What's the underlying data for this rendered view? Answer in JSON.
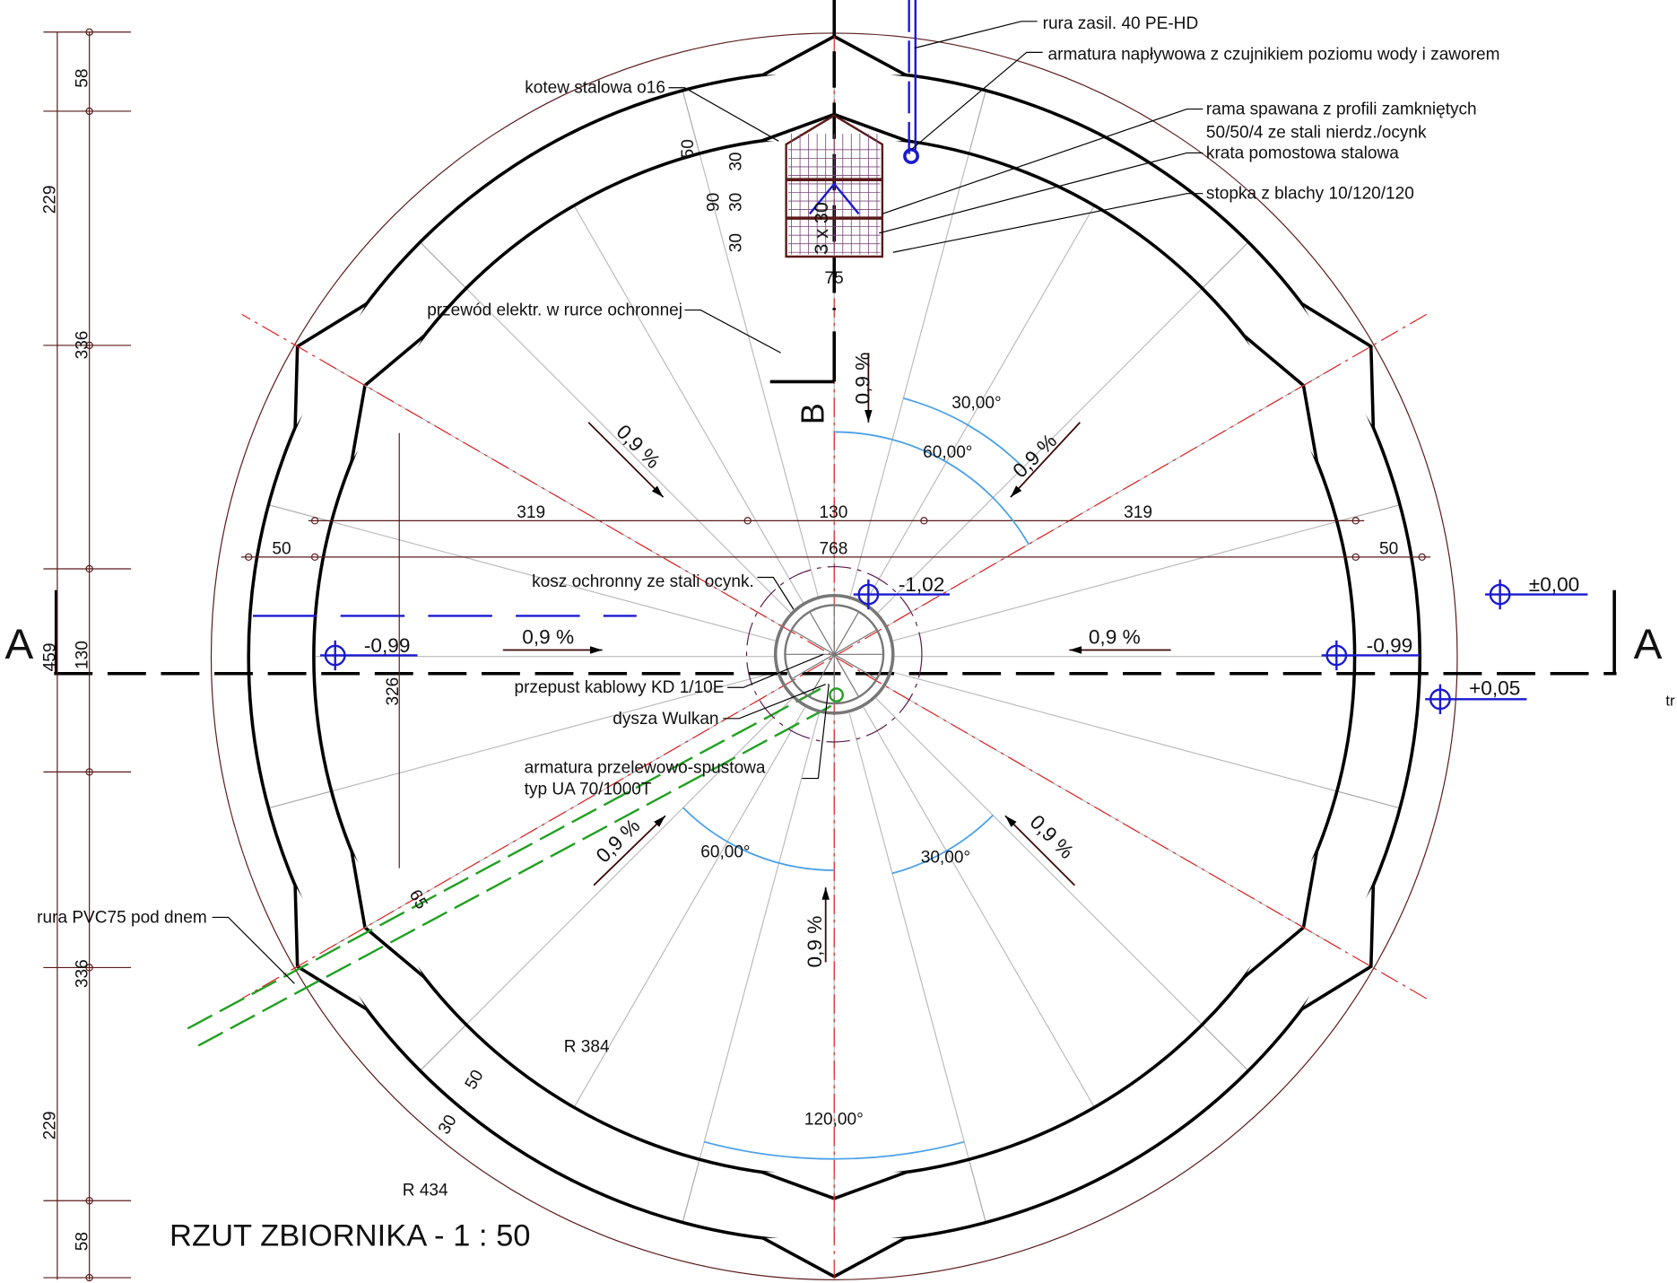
{
  "title": "RZUT ZBIORNIKA - 1 : 50",
  "section_marks": [
    "A",
    "A",
    "B"
  ],
  "side_note": "tr",
  "callouts": {
    "supply_pipe": "rura zasil. 40 PE-HD",
    "inlet_fitting": "armatura napływowa z czujnikiem poziomu wody i zaworem",
    "anchor": "kotew stalowa o16",
    "frame": [
      "rama spawana z profili zamkniętych",
      "50/50/4 ze stali nierdz./ocynk"
    ],
    "grating": "krata pomostowa stalowa",
    "foot_plate": "stopka z blachy 10/120/120",
    "cable": "przewód elektr. w rurce ochronnej",
    "basket": "kosz ochronny ze stali ocynk.",
    "cable_gland": "przepust kablowy KD 1/10E",
    "nozzle": "dysza Wulkan",
    "overflow": [
      "armatura przelewowo-spustowa",
      "typ UA 70/1000T"
    ],
    "pvc_pipe": "rura PVC75 pod dnem"
  },
  "elevations": [
    "±0,00",
    "-1,02",
    "-0,99",
    "-0,99",
    "+0,05"
  ],
  "slopes": [
    "0,9 %",
    "0,9 %",
    "0,9 %",
    "0,9 %",
    "0,9 %",
    "0,9 %",
    "0,9 %",
    "0,9 %"
  ],
  "angles": [
    "30,00°",
    "60,00°",
    "60,00°",
    "30,00°",
    "120,00°"
  ],
  "dimensions": {
    "left": [
      "58",
      "229",
      "336",
      "130",
      "459",
      "336",
      "229",
      "58"
    ],
    "horizontal": [
      "319",
      "130",
      "319",
      "50",
      "768",
      "50"
    ],
    "radii": [
      "R 384",
      "R 434"
    ],
    "other": [
      "326",
      "65",
      "50",
      "30"
    ],
    "detail": [
      "50",
      "30",
      "90",
      "30",
      "30",
      "75",
      "3 x 30"
    ]
  }
}
